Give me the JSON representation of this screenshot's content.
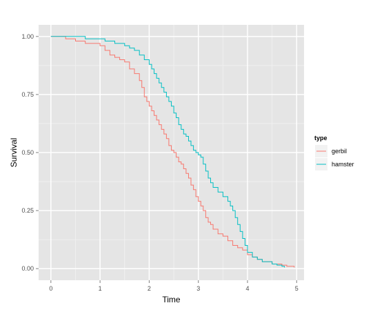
{
  "chart_data": {
    "type": "line",
    "step": true,
    "title": "",
    "xlabel": "Time",
    "ylabel": "Survival",
    "xlim": [
      -0.25,
      5.15
    ],
    "ylim": [
      -0.05,
      1.05
    ],
    "x_ticks": [
      0,
      1,
      2,
      3,
      4,
      5
    ],
    "x_tick_labels": [
      "0",
      "1",
      "2",
      "3",
      "4",
      "5"
    ],
    "y_ticks": [
      0,
      0.25,
      0.5,
      0.75,
      1
    ],
    "y_tick_labels": [
      "0.00",
      "0.25",
      "0.50",
      "0.75",
      "1.00"
    ],
    "grid": true,
    "background": "#e5e5e5",
    "legend": {
      "title": "type",
      "position": "right",
      "entries": [
        "gerbil",
        "hamster"
      ]
    },
    "series": [
      {
        "name": "gerbil",
        "color": "#f8766d",
        "x": [
          0,
          0.3,
          0.5,
          0.7,
          0.9,
          1.0,
          1.1,
          1.2,
          1.3,
          1.4,
          1.5,
          1.6,
          1.7,
          1.8,
          1.85,
          1.9,
          1.95,
          2.0,
          2.05,
          2.1,
          2.15,
          2.2,
          2.25,
          2.3,
          2.35,
          2.4,
          2.45,
          2.5,
          2.55,
          2.6,
          2.65,
          2.7,
          2.75,
          2.8,
          2.85,
          2.9,
          2.95,
          3.0,
          3.05,
          3.1,
          3.15,
          3.2,
          3.25,
          3.3,
          3.4,
          3.5,
          3.6,
          3.7,
          3.8,
          3.9,
          4.0,
          4.1,
          4.2,
          4.3,
          4.5,
          4.7,
          4.8,
          4.95
        ],
        "y": [
          1.0,
          0.99,
          0.98,
          0.97,
          0.97,
          0.96,
          0.94,
          0.92,
          0.91,
          0.9,
          0.89,
          0.86,
          0.84,
          0.81,
          0.78,
          0.74,
          0.72,
          0.7,
          0.68,
          0.66,
          0.64,
          0.62,
          0.6,
          0.58,
          0.56,
          0.53,
          0.51,
          0.5,
          0.48,
          0.46,
          0.45,
          0.43,
          0.41,
          0.39,
          0.36,
          0.34,
          0.31,
          0.29,
          0.27,
          0.25,
          0.22,
          0.2,
          0.19,
          0.17,
          0.15,
          0.14,
          0.12,
          0.1,
          0.09,
          0.08,
          0.06,
          0.05,
          0.04,
          0.03,
          0.02,
          0.015,
          0.01,
          0.005
        ]
      },
      {
        "name": "hamster",
        "color": "#00bfc4",
        "x": [
          0,
          0.7,
          1.0,
          1.1,
          1.2,
          1.3,
          1.4,
          1.5,
          1.6,
          1.7,
          1.8,
          1.9,
          2.0,
          2.05,
          2.1,
          2.15,
          2.2,
          2.25,
          2.3,
          2.35,
          2.4,
          2.45,
          2.5,
          2.55,
          2.6,
          2.65,
          2.7,
          2.75,
          2.8,
          2.85,
          2.9,
          2.95,
          3.0,
          3.05,
          3.1,
          3.15,
          3.2,
          3.25,
          3.3,
          3.4,
          3.5,
          3.6,
          3.65,
          3.7,
          3.75,
          3.8,
          3.85,
          3.9,
          3.95,
          4.0,
          4.1,
          4.2,
          4.3,
          4.5,
          4.6,
          4.7,
          4.75
        ],
        "y": [
          1.0,
          0.99,
          0.99,
          0.98,
          0.98,
          0.97,
          0.97,
          0.96,
          0.95,
          0.94,
          0.92,
          0.9,
          0.88,
          0.86,
          0.84,
          0.82,
          0.8,
          0.78,
          0.76,
          0.74,
          0.72,
          0.7,
          0.67,
          0.65,
          0.62,
          0.6,
          0.58,
          0.57,
          0.55,
          0.53,
          0.51,
          0.5,
          0.49,
          0.48,
          0.45,
          0.42,
          0.39,
          0.37,
          0.35,
          0.33,
          0.31,
          0.29,
          0.27,
          0.25,
          0.22,
          0.19,
          0.16,
          0.13,
          0.1,
          0.07,
          0.05,
          0.04,
          0.03,
          0.02,
          0.015,
          0.01,
          0.005
        ]
      }
    ]
  }
}
